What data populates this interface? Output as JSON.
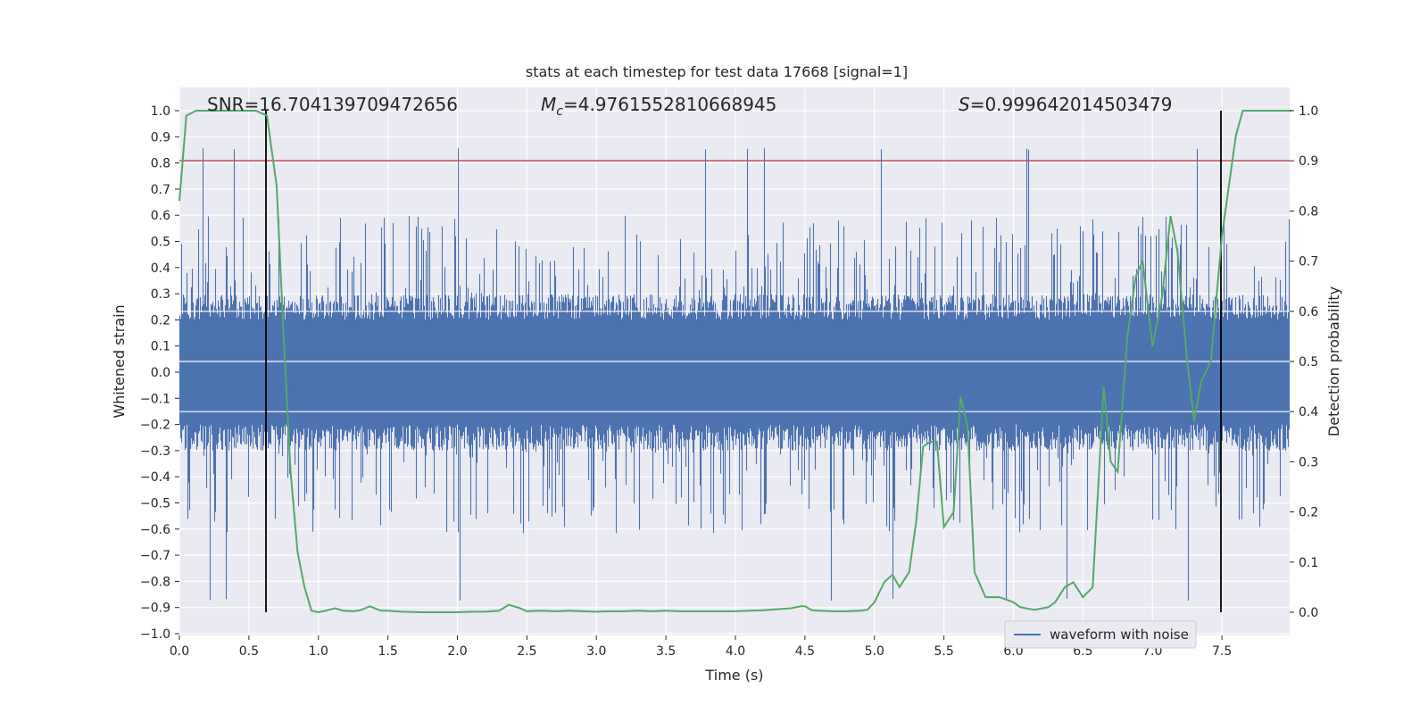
{
  "chart_data": {
    "type": "line",
    "title": "stats at each timestep for test data 17668 [signal=1]",
    "xlabel": "Time (s)",
    "ylabel_left": "Whitened strain",
    "ylabel_right": "Detection probability",
    "xlim": [
      0.0,
      8.0
    ],
    "ylim_left": [
      -1.0,
      1.0
    ],
    "ylim_right": [
      0.0,
      1.0
    ],
    "x_ticks": [
      "0.0",
      "0.5",
      "1.0",
      "1.5",
      "2.0",
      "2.5",
      "3.0",
      "3.5",
      "4.0",
      "4.5",
      "5.0",
      "5.5",
      "6.0",
      "6.5",
      "7.0",
      "7.5"
    ],
    "y_left_ticks": [
      "1.0",
      "0.9",
      "0.8",
      "0.7",
      "0.6",
      "0.5",
      "0.4",
      "0.3",
      "0.2",
      "0.1",
      "0.0",
      "−0.1",
      "−0.2",
      "−0.3",
      "−0.4",
      "−0.5",
      "−0.6",
      "−0.7",
      "−0.8",
      "−0.9",
      "−1.0"
    ],
    "y_right_ticks": [
      "1.0",
      "0.9",
      "0.8",
      "0.7",
      "0.6",
      "0.5",
      "0.4",
      "0.3",
      "0.2",
      "0.1",
      "0.0"
    ],
    "grid": true,
    "legend": {
      "placement": "lower-right",
      "entries": [
        "waveform with noise"
      ]
    },
    "annotations": {
      "snr": "SNR=16.704139709472656",
      "mc_symbol": "M",
      "mc_sub": "c",
      "mc_value": "=4.9761552810668945",
      "s_symbol": "S",
      "s_value": "=0.999642014503479"
    },
    "vertical_markers_s": [
      0.625,
      7.5
    ],
    "threshold_probability": 0.9,
    "colors": {
      "waveform": "#4c72b0",
      "probability": "#55a868",
      "threshold": "#c44e52",
      "markers": "#000000",
      "plot_bg": "#eaeaf2",
      "grid": "#ffffff"
    },
    "series": [
      {
        "name": "waveform with noise",
        "kind": "noise-band",
        "typical_amplitude": 0.2,
        "peak_amplitude": 0.94
      },
      {
        "kind": "probability",
        "x": [
          0.0,
          0.05,
          0.12,
          0.2,
          0.3,
          0.4,
          0.5,
          0.55,
          0.63,
          0.7,
          0.75,
          0.8,
          0.85,
          0.9,
          0.95,
          1.0,
          1.05,
          1.12,
          1.18,
          1.25,
          1.3,
          1.37,
          1.45,
          1.5,
          1.6,
          1.75,
          1.9,
          2.0,
          2.1,
          2.2,
          2.3,
          2.37,
          2.45,
          2.5,
          2.6,
          2.7,
          2.8,
          2.9,
          3.0,
          3.1,
          3.2,
          3.3,
          3.4,
          3.5,
          3.6,
          3.7,
          3.8,
          3.9,
          4.0,
          4.1,
          4.2,
          4.3,
          4.4,
          4.47,
          4.5,
          4.55,
          4.6,
          4.7,
          4.8,
          4.9,
          4.95,
          5.0,
          5.07,
          5.13,
          5.18,
          5.25,
          5.3,
          5.35,
          5.4,
          5.45,
          5.5,
          5.57,
          5.62,
          5.67,
          5.72,
          5.8,
          5.9,
          6.0,
          6.05,
          6.15,
          6.25,
          6.3,
          6.37,
          6.43,
          6.5,
          6.57,
          6.65,
          6.7,
          6.75,
          6.82,
          6.88,
          6.93,
          7.0,
          7.07,
          7.13,
          7.18,
          7.25,
          7.3,
          7.35,
          7.42,
          7.5,
          7.6,
          7.65,
          7.7,
          7.8,
          7.9,
          8.0
        ],
        "y": [
          0.82,
          0.99,
          1.0,
          1.0,
          1.0,
          1.0,
          1.0,
          1.0,
          0.99,
          0.85,
          0.55,
          0.28,
          0.12,
          0.05,
          0.003,
          0.0,
          0.003,
          0.008,
          0.003,
          0.002,
          0.004,
          0.012,
          0.003,
          0.003,
          0.001,
          0.0,
          0.0,
          0.0,
          0.001,
          0.001,
          0.003,
          0.015,
          0.008,
          0.002,
          0.003,
          0.002,
          0.003,
          0.002,
          0.001,
          0.002,
          0.002,
          0.003,
          0.002,
          0.003,
          0.002,
          0.002,
          0.002,
          0.002,
          0.002,
          0.003,
          0.004,
          0.006,
          0.008,
          0.012,
          0.012,
          0.004,
          0.003,
          0.002,
          0.002,
          0.003,
          0.005,
          0.02,
          0.06,
          0.075,
          0.05,
          0.08,
          0.18,
          0.33,
          0.34,
          0.34,
          0.17,
          0.2,
          0.43,
          0.37,
          0.08,
          0.03,
          0.03,
          0.02,
          0.01,
          0.005,
          0.01,
          0.02,
          0.05,
          0.06,
          0.03,
          0.05,
          0.45,
          0.3,
          0.28,
          0.55,
          0.67,
          0.7,
          0.53,
          0.63,
          0.79,
          0.72,
          0.5,
          0.38,
          0.46,
          0.5,
          0.75,
          0.95,
          1.0,
          1.0,
          1.0,
          1.0,
          1.0
        ]
      }
    ]
  }
}
